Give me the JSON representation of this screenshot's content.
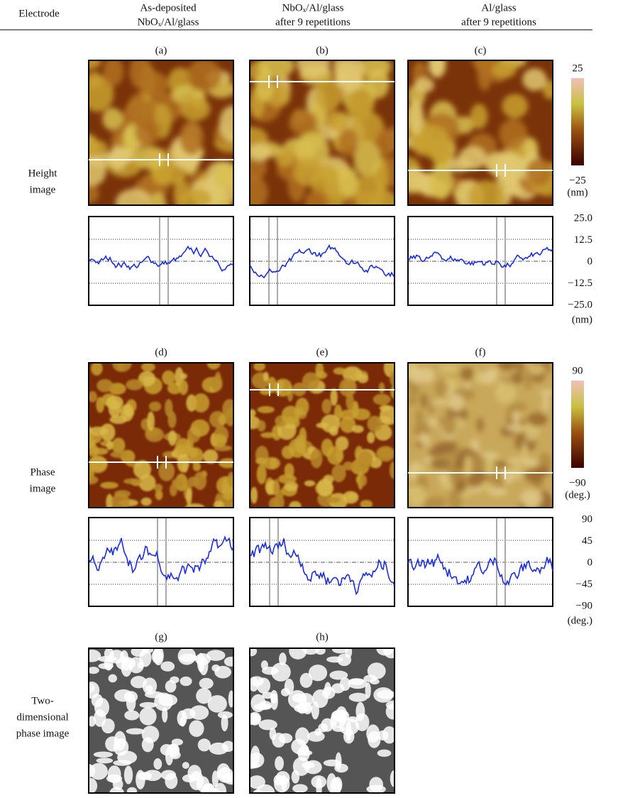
{
  "header": {
    "label": "Electrode",
    "columns": [
      [
        "As-deposited",
        "NbOₓ/Al/glass"
      ],
      [
        "NbOₓ/Al/glass",
        "after 9 repetitions"
      ],
      [
        "Al/glass",
        "after 9 repetitions"
      ]
    ]
  },
  "rows": [
    {
      "label": [
        "Height",
        "image"
      ],
      "panels": [
        "(a)",
        "(b)",
        "(c)"
      ],
      "colorbar": {
        "max": "25",
        "min": "−25",
        "unit": "(nm)"
      },
      "profile": {
        "ticks": [
          "25.0",
          "12.5",
          "0",
          "−12.5",
          "−25.0"
        ],
        "unit": "(nm)"
      }
    },
    {
      "label": [
        "Phase",
        "image"
      ],
      "panels": [
        "(d)",
        "(e)",
        "(f)"
      ],
      "colorbar": {
        "max": "90",
        "min": "−90",
        "unit": "(deg.)"
      },
      "profile": {
        "ticks": [
          "90",
          "45",
          "0",
          "−45",
          "−90"
        ],
        "unit": "(deg.)"
      }
    },
    {
      "label": [
        "Two-",
        "dimensional",
        "phase image"
      ],
      "panels": [
        "(g)",
        "(h)"
      ]
    }
  ]
}
